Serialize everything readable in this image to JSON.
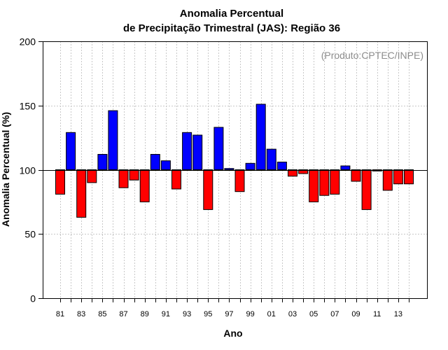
{
  "chart_data": {
    "type": "bar",
    "title_lines": [
      "Anomalia Percentual",
      "de Precipitação Trimestral (JAS): Região 36"
    ],
    "xlabel": "Ano",
    "ylabel": "Anomalia Percentual (%)",
    "watermark": "(Produto:CPTEC/INPE)",
    "ylim": [
      0,
      200
    ],
    "yticks": [
      0,
      50,
      100,
      150,
      200
    ],
    "baseline": 100,
    "grid": true,
    "colors": {
      "above": "#0000ff",
      "below": "#ff0000"
    },
    "categories": [
      "81",
      "82",
      "83",
      "84",
      "85",
      "86",
      "87",
      "88",
      "89",
      "90",
      "91",
      "92",
      "93",
      "94",
      "95",
      "96",
      "97",
      "98",
      "99",
      "00",
      "01",
      "02",
      "03",
      "04",
      "05",
      "06",
      "07",
      "08",
      "09",
      "10",
      "11",
      "12",
      "13",
      "14"
    ],
    "tick_labels": [
      "81",
      "83",
      "85",
      "87",
      "89",
      "91",
      "93",
      "95",
      "97",
      "99",
      "01",
      "03",
      "05",
      "07",
      "09",
      "11",
      "13"
    ],
    "values": [
      81,
      129,
      63,
      90,
      112,
      146,
      86,
      92,
      75,
      112,
      107,
      85,
      129,
      127,
      69,
      133,
      101,
      83,
      105,
      151,
      116,
      106,
      95,
      97,
      75,
      80,
      81,
      103,
      91,
      69,
      99,
      84,
      89,
      89
    ]
  }
}
